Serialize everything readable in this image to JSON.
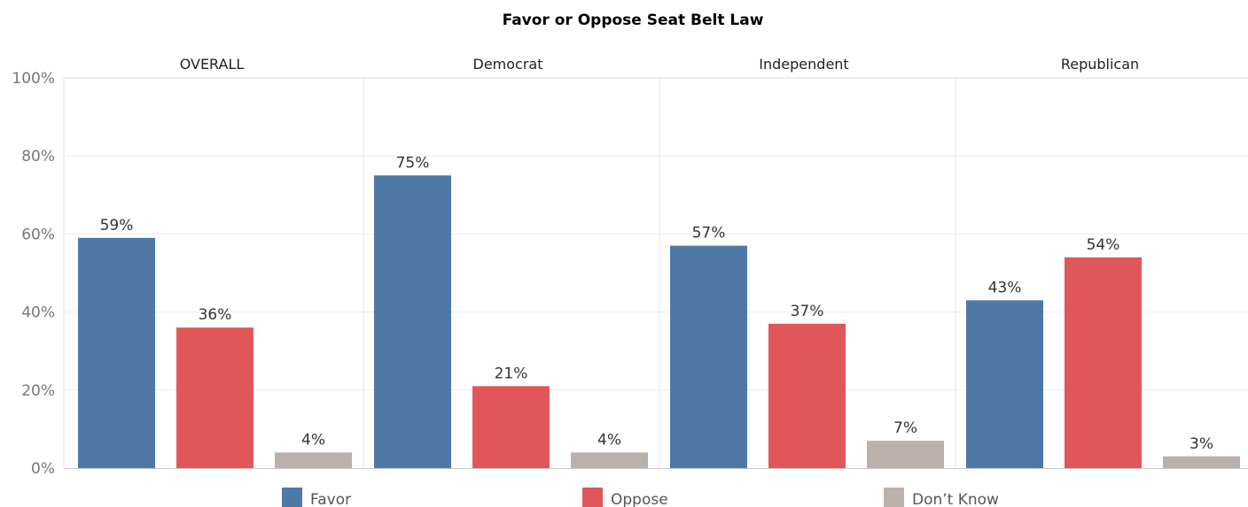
{
  "chart_data": {
    "type": "bar",
    "title": "Favor or Oppose Seat Belt Law",
    "facets": [
      "OVERALL",
      "Democrat",
      "Independent",
      "Republican"
    ],
    "series": [
      {
        "name": "Favor",
        "color": "#4e79a7",
        "values": [
          59,
          75,
          57,
          43
        ],
        "labels": [
          "59%",
          "75%",
          "57%",
          "43%"
        ]
      },
      {
        "name": "Oppose",
        "color": "#e15759",
        "values": [
          36,
          21,
          37,
          54
        ],
        "labels": [
          "36%",
          "21%",
          "37%",
          "54%"
        ]
      },
      {
        "name": "Don’t Know",
        "color": "#bab0ac",
        "values": [
          4,
          4,
          7,
          3
        ],
        "labels": [
          "4%",
          "4%",
          "7%",
          "3%"
        ]
      }
    ],
    "y_ticks": [
      "0%",
      "20%",
      "40%",
      "60%",
      "80%",
      "100%"
    ],
    "ylim": [
      0,
      100
    ],
    "grid": true,
    "legend_position": "bottom"
  }
}
